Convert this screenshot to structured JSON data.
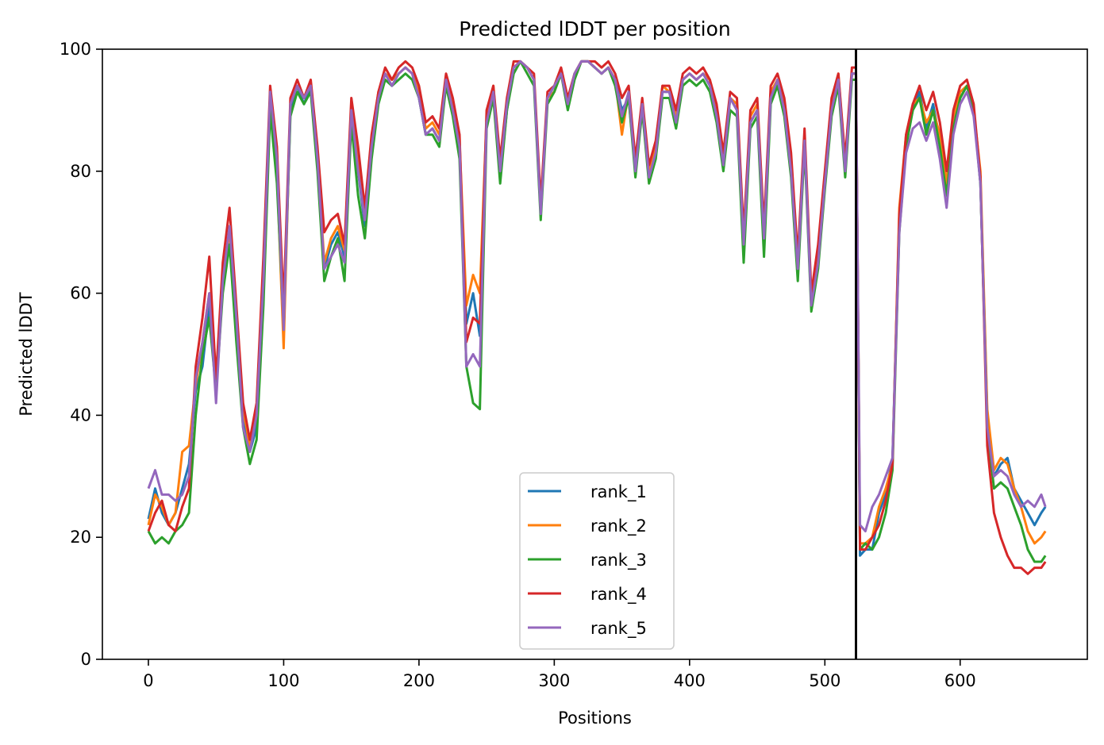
{
  "chart_data": {
    "type": "line",
    "title": "Predicted lDDT per position",
    "xlabel": "Positions",
    "ylabel": "Predicted lDDT",
    "xlim": [
      -34,
      694
    ],
    "ylim": [
      0,
      100
    ],
    "xticks": [
      0,
      100,
      200,
      300,
      400,
      500,
      600
    ],
    "yticks": [
      0,
      20,
      40,
      60,
      80,
      100
    ],
    "grid": false,
    "legend_position": "lower center",
    "vline_x": 523,
    "common_x": [
      0,
      5,
      10,
      15,
      20,
      25,
      30,
      35,
      40,
      45,
      50,
      55,
      60,
      65,
      70,
      75,
      80,
      85,
      90,
      95,
      100,
      105,
      110,
      115,
      120,
      125,
      130,
      135,
      140,
      145,
      150,
      155,
      160,
      165,
      170,
      175,
      180,
      185,
      190,
      195,
      200,
      205,
      210,
      215,
      220,
      225,
      230,
      235,
      240,
      245,
      250,
      255,
      260,
      265,
      270,
      275,
      280,
      285,
      290,
      295,
      300,
      305,
      310,
      315,
      320,
      325,
      330,
      335,
      340,
      345,
      350,
      355,
      360,
      365,
      370,
      375,
      380,
      385,
      390,
      395,
      400,
      405,
      410,
      415,
      420,
      425,
      430,
      435,
      440,
      445,
      450,
      455,
      460,
      465,
      470,
      475,
      480,
      485,
      490,
      495,
      500,
      505,
      510,
      515,
      520,
      523,
      526,
      530,
      535,
      540,
      545,
      550,
      555,
      560,
      565,
      570,
      575,
      580,
      585,
      590,
      595,
      600,
      605,
      610,
      615,
      620,
      625,
      630,
      635,
      640,
      645,
      650,
      655,
      660,
      663
    ],
    "series": [
      {
        "name": "rank_1",
        "color": "#1f77b4",
        "values": [
          23,
          28,
          24,
          22,
          24,
          28,
          32,
          44,
          48,
          58,
          45,
          62,
          68,
          55,
          40,
          34,
          38,
          60,
          92,
          80,
          54,
          90,
          94,
          91,
          94,
          82,
          64,
          68,
          70,
          66,
          90,
          80,
          71,
          84,
          92,
          96,
          94,
          96,
          97,
          96,
          92,
          86,
          87,
          85,
          95,
          90,
          84,
          55,
          60,
          53,
          88,
          93,
          79,
          90,
          97,
          98,
          97,
          95,
          73,
          92,
          94,
          96,
          91,
          96,
          98,
          98,
          97,
          96,
          97,
          95,
          90,
          92,
          80,
          90,
          79,
          83,
          93,
          93,
          88,
          95,
          96,
          95,
          96,
          94,
          89,
          81,
          92,
          90,
          67,
          88,
          90,
          68,
          92,
          95,
          90,
          80,
          63,
          85,
          58,
          65,
          78,
          90,
          95,
          80,
          96,
          96,
          17,
          18,
          18,
          24,
          27,
          33,
          72,
          85,
          90,
          93,
          87,
          91,
          85,
          77,
          88,
          92,
          94,
          90,
          78,
          40,
          30,
          32,
          33,
          28,
          26,
          24,
          22,
          24,
          25
        ],
        "end_values": {}
      },
      {
        "name": "rank_2",
        "color": "#ff7f0e",
        "values": [
          22,
          27,
          25,
          22,
          24,
          34,
          35,
          45,
          52,
          60,
          46,
          63,
          70,
          56,
          41,
          35,
          40,
          62,
          93,
          80,
          51,
          91,
          94,
          92,
          94,
          83,
          65,
          69,
          71,
          67,
          91,
          81,
          72,
          85,
          93,
          96,
          95,
          96,
          97,
          96,
          93,
          87,
          88,
          86,
          95,
          91,
          85,
          58,
          63,
          60,
          89,
          94,
          80,
          91,
          97,
          98,
          97,
          95,
          73,
          92,
          93,
          96,
          91,
          96,
          98,
          98,
          97,
          96,
          97,
          95,
          86,
          93,
          80,
          91,
          80,
          84,
          94,
          93,
          89,
          95,
          96,
          95,
          96,
          95,
          90,
          82,
          92,
          91,
          68,
          89,
          91,
          69,
          93,
          95,
          91,
          81,
          64,
          86,
          59,
          66,
          79,
          91,
          96,
          81,
          96,
          96,
          19,
          19,
          20,
          25,
          28,
          32,
          74,
          86,
          91,
          92,
          88,
          90,
          86,
          78,
          89,
          93,
          94,
          90,
          80,
          41,
          31,
          33,
          32,
          28,
          25,
          21,
          19,
          20,
          21
        ]
      },
      {
        "name": "rank_3",
        "color": "#2ca02c",
        "values": [
          21,
          19,
          20,
          19,
          21,
          22,
          24,
          40,
          50,
          56,
          44,
          60,
          68,
          52,
          38,
          32,
          36,
          58,
          90,
          78,
          55,
          89,
          93,
          91,
          93,
          80,
          62,
          66,
          69,
          62,
          88,
          76,
          69,
          82,
          91,
          95,
          94,
          95,
          96,
          95,
          92,
          86,
          86,
          84,
          94,
          89,
          82,
          48,
          42,
          41,
          87,
          92,
          78,
          90,
          96,
          98,
          96,
          94,
          72,
          91,
          93,
          96,
          90,
          95,
          98,
          98,
          97,
          96,
          97,
          94,
          88,
          92,
          79,
          90,
          78,
          82,
          92,
          92,
          87,
          94,
          95,
          94,
          95,
          93,
          88,
          80,
          90,
          89,
          65,
          87,
          89,
          66,
          91,
          94,
          89,
          79,
          62,
          84,
          57,
          64,
          77,
          89,
          94,
          79,
          95,
          95,
          18,
          19,
          18,
          20,
          24,
          31,
          70,
          84,
          90,
          92,
          86,
          90,
          84,
          76,
          87,
          92,
          94,
          90,
          78,
          38,
          28,
          29,
          28,
          25,
          22,
          18,
          16,
          16,
          17
        ]
      },
      {
        "name": "rank_4",
        "color": "#d62728",
        "values": [
          21,
          24,
          26,
          22,
          21,
          25,
          28,
          48,
          56,
          66,
          46,
          65,
          74,
          58,
          42,
          36,
          42,
          66,
          94,
          84,
          58,
          92,
          95,
          92,
          95,
          84,
          70,
          72,
          73,
          68,
          92,
          84,
          74,
          86,
          93,
          97,
          95,
          97,
          98,
          97,
          94,
          88,
          89,
          87,
          96,
          92,
          86,
          52,
          56,
          55,
          90,
          94,
          82,
          92,
          98,
          98,
          97,
          96,
          75,
          93,
          94,
          97,
          92,
          96,
          98,
          98,
          98,
          97,
          98,
          96,
          92,
          94,
          82,
          92,
          81,
          85,
          94,
          94,
          90,
          96,
          97,
          96,
          97,
          95,
          91,
          83,
          93,
          92,
          70,
          90,
          92,
          71,
          94,
          96,
          92,
          83,
          66,
          87,
          60,
          68,
          80,
          92,
          96,
          82,
          97,
          97,
          18,
          18,
          20,
          22,
          26,
          32,
          73,
          86,
          91,
          94,
          90,
          93,
          88,
          80,
          90,
          94,
          95,
          91,
          79,
          35,
          24,
          20,
          17,
          15,
          15,
          14,
          15,
          15,
          16
        ]
      },
      {
        "name": "rank_5",
        "color": "#9467bd",
        "values": [
          28,
          31,
          27,
          27,
          26,
          27,
          30,
          46,
          52,
          60,
          42,
          62,
          71,
          56,
          38,
          34,
          40,
          62,
          93,
          82,
          54,
          91,
          94,
          92,
          94,
          82,
          64,
          66,
          68,
          65,
          90,
          80,
          72,
          84,
          92,
          96,
          94,
          96,
          97,
          96,
          92,
          86,
          87,
          85,
          95,
          90,
          84,
          48,
          50,
          48,
          88,
          93,
          80,
          91,
          97,
          98,
          97,
          95,
          73,
          92,
          94,
          96,
          91,
          96,
          98,
          98,
          97,
          96,
          97,
          95,
          89,
          93,
          80,
          91,
          79,
          83,
          93,
          93,
          88,
          95,
          96,
          95,
          96,
          94,
          89,
          81,
          92,
          90,
          68,
          88,
          90,
          69,
          92,
          95,
          90,
          80,
          64,
          85,
          58,
          65,
          78,
          90,
          95,
          80,
          96,
          96,
          22,
          21,
          25,
          27,
          30,
          33,
          70,
          83,
          87,
          88,
          85,
          88,
          82,
          74,
          86,
          91,
          93,
          89,
          78,
          38,
          30,
          31,
          30,
          27,
          25,
          26,
          25,
          27,
          25
        ]
      }
    ]
  }
}
